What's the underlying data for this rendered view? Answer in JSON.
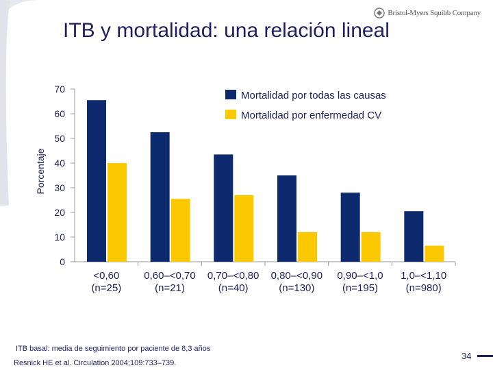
{
  "slide": {
    "title": "ITB y mortalidad: una relación lineal",
    "logo_text": "Bristol-Myers Squibb Company",
    "footnote": "ITB basal: media de seguimiento por paciente de 8,3 años",
    "citation": "Resnick HE et al. Circulation 2004;109:733–739.",
    "page_number": "34"
  },
  "colors": {
    "navy": "#0d2a6e",
    "yellow": "#fcc800",
    "text": "#1f1f5f",
    "axis": "#9a9a9a"
  },
  "chart_data": {
    "type": "bar",
    "title": "ITB y mortalidad: una relación lineal",
    "ylabel": "Porcentaje",
    "xlabel": "",
    "ylim": [
      0,
      70
    ],
    "yticks": [
      0,
      10,
      20,
      30,
      40,
      50,
      60,
      70
    ],
    "categories": [
      {
        "range": "<0,60",
        "n": "(n=25)"
      },
      {
        "range": "0,60–<0,70",
        "n": "(n=21)"
      },
      {
        "range": "0,70–<0,80",
        "n": "(n=40)"
      },
      {
        "range": "0,80–<0,90",
        "n": "(n=130)"
      },
      {
        "range": "0,90–<1,0",
        "n": "(n=195)"
      },
      {
        "range": "1,0–<1,10",
        "n": "(n=980)"
      }
    ],
    "series": [
      {
        "name": "Mortalidad por todas las causas",
        "color_key": "navy",
        "values": [
          65.5,
          52.5,
          43.5,
          35,
          28,
          20.5
        ]
      },
      {
        "name": "Mortalidad por enfermedad CV",
        "color_key": "yellow",
        "values": [
          40,
          25.5,
          27,
          12,
          12,
          6.5
        ]
      }
    ],
    "legend_position": "top-right"
  }
}
